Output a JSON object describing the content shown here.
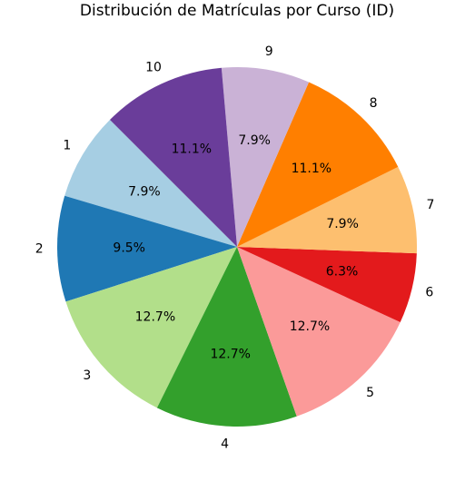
{
  "chart_data": {
    "type": "pie",
    "title": "Distribución de Matrículas por Curso (ID)",
    "start_angle_deg": 135,
    "direction": "counterclockwise",
    "slices": [
      {
        "label": "1",
        "value": 7.9,
        "pct_label": "7.9%",
        "color": "#a6cee3"
      },
      {
        "label": "2",
        "value": 9.5,
        "pct_label": "9.5%",
        "color": "#1f78b4"
      },
      {
        "label": "3",
        "value": 12.7,
        "pct_label": "12.7%",
        "color": "#b2df8a"
      },
      {
        "label": "4",
        "value": 12.7,
        "pct_label": "12.7%",
        "color": "#33a02c"
      },
      {
        "label": "5",
        "value": 12.7,
        "pct_label": "12.7%",
        "color": "#fb9a99"
      },
      {
        "label": "6",
        "value": 6.3,
        "pct_label": "6.3%",
        "color": "#e31a1c"
      },
      {
        "label": "7",
        "value": 7.9,
        "pct_label": "7.9%",
        "color": "#fdbf6f"
      },
      {
        "label": "8",
        "value": 11.1,
        "pct_label": "11.1%",
        "color": "#ff7f00"
      },
      {
        "label": "9",
        "value": 7.9,
        "pct_label": "7.9%",
        "color": "#cab2d6"
      },
      {
        "label": "10",
        "value": 11.1,
        "pct_label": "11.1%",
        "color": "#6a3d9a"
      }
    ]
  }
}
